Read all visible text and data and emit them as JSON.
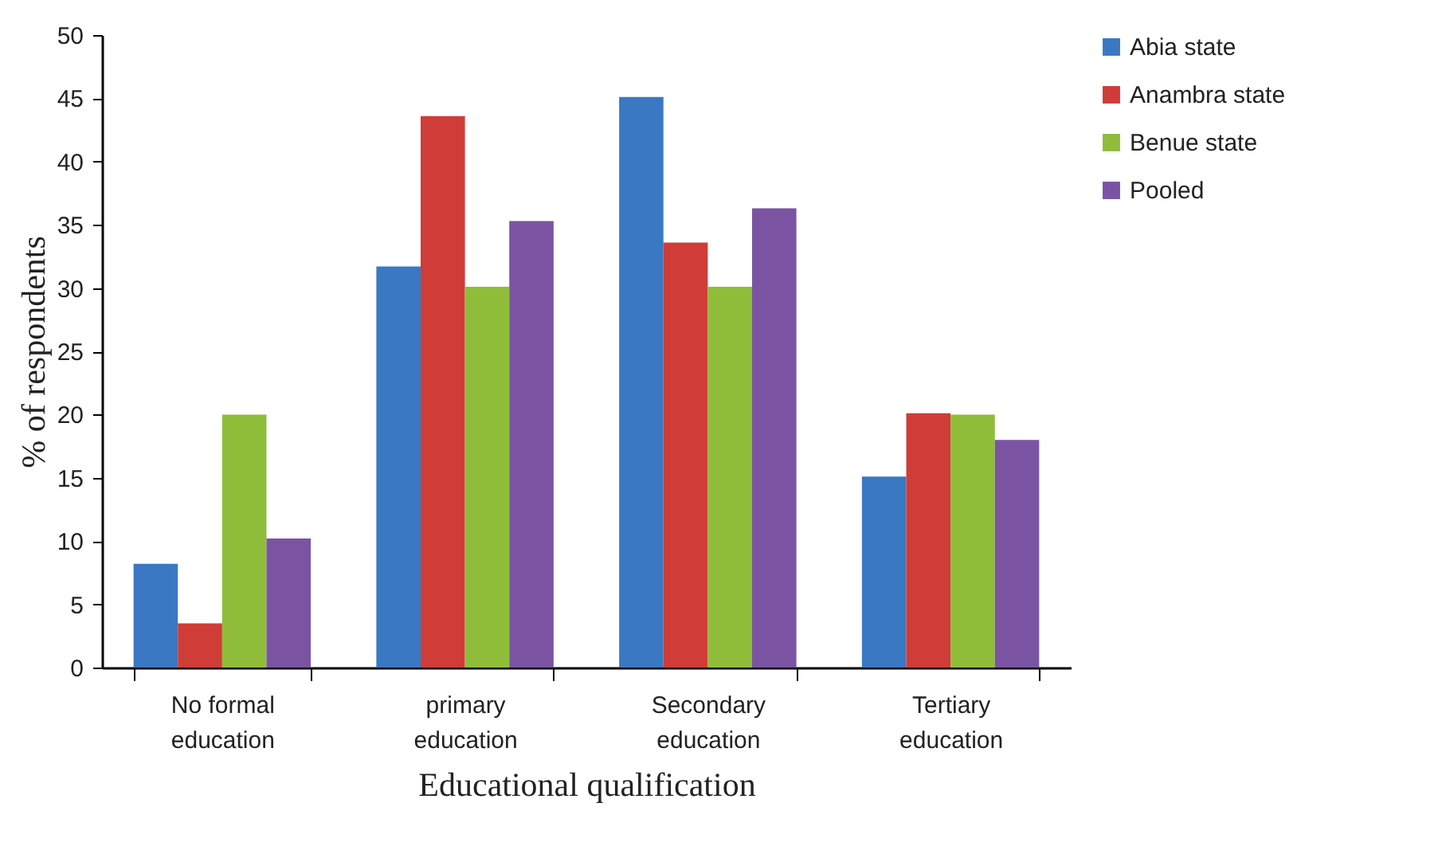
{
  "chart_data": {
    "type": "bar",
    "xlabel": "Educational qualification",
    "ylabel": "% of respondents",
    "categories": [
      "No formal education",
      "primary education",
      "Secondary education",
      "Tertiary education"
    ],
    "series": [
      {
        "name": "Abia state",
        "color": "#3a78c3",
        "values": [
          8.2,
          31.7,
          45.1,
          15.1
        ]
      },
      {
        "name": "Anambra state",
        "color": "#d03c38",
        "values": [
          3.5,
          43.6,
          33.6,
          20.1
        ]
      },
      {
        "name": "Benue state",
        "color": "#8fbd3a",
        "values": [
          20,
          30.1,
          30.1,
          20
        ]
      },
      {
        "name": "Pooled",
        "color": "#7a54a3",
        "values": [
          10.2,
          35.3,
          36.3,
          18
        ]
      }
    ],
    "ylim": [
      0,
      50
    ],
    "yticks": [
      0,
      5,
      10,
      15,
      20,
      25,
      30,
      35,
      40,
      45,
      50
    ],
    "grid": false,
    "legend": "right"
  }
}
